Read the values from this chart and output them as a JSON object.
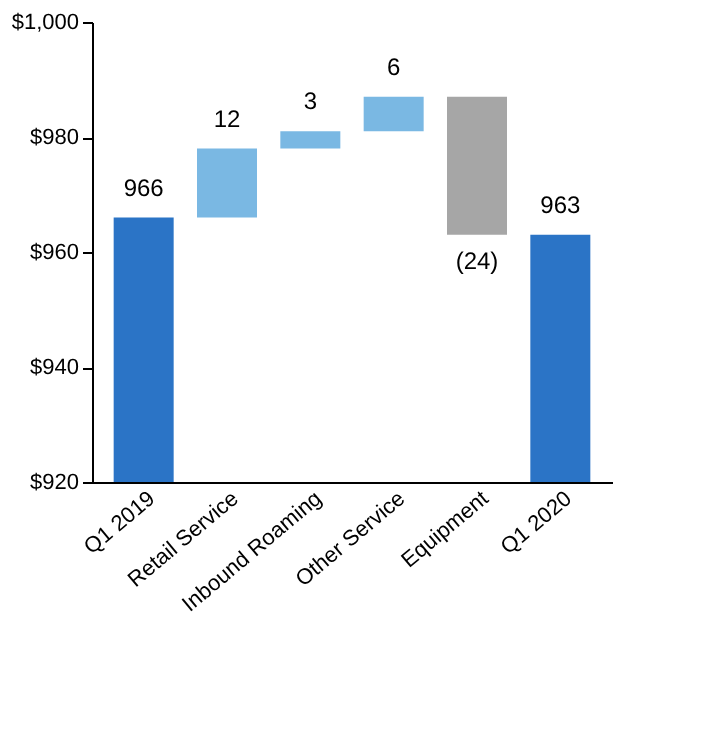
{
  "chart_data": {
    "type": "bar",
    "categories": [
      "Q1 2019",
      "Retail Service",
      "Inbound Roaming",
      "Other Service",
      "Equipment",
      "Q1 2020"
    ],
    "values": [
      966,
      12,
      3,
      6,
      -24,
      963
    ],
    "base": [
      0,
      966,
      978,
      981,
      987,
      0
    ],
    "colors": [
      "#2b74c6",
      "#7ab8e3",
      "#7ab8e3",
      "#7ab8e3",
      "#a6a6a6",
      "#2b74c6"
    ],
    "value_labels": [
      "966",
      "12",
      "3",
      "6",
      "(24)",
      "963"
    ],
    "ylim": [
      920,
      1000
    ],
    "yticks": [
      {
        "value": 920,
        "label": "$920"
      },
      {
        "value": 940,
        "label": "$940"
      },
      {
        "value": 960,
        "label": "$960"
      },
      {
        "value": 980,
        "label": "$980"
      },
      {
        "value": 1000,
        "label": "$1,000"
      }
    ],
    "grid": false
  }
}
